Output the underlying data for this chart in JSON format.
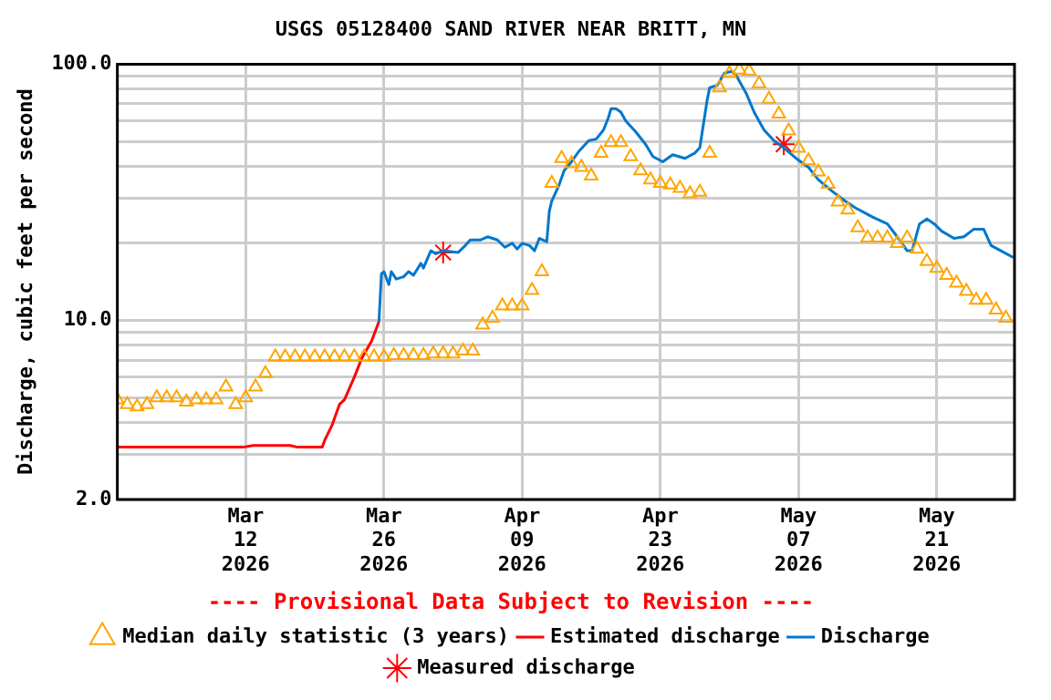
{
  "chart_data": {
    "type": "line",
    "title": "USGS 05128400 SAND RIVER NEAR BRITT, MN",
    "ylabel": "Discharge, cubic feet per second",
    "annotations": [
      "---- Provisional Data Subject to Revision ----"
    ],
    "log": true,
    "grid": true,
    "legend": "bottom",
    "xlim": [
      "2026-02-27",
      "2026-05-28T21:00"
    ],
    "xticks": [
      {
        "value": "2026-03-12",
        "label": "Mar 12 2026"
      },
      {
        "value": "2026-03-26",
        "label": "Mar 26 2026"
      },
      {
        "value": "2026-04-09",
        "label": "Apr 09 2026"
      },
      {
        "value": "2026-04-23",
        "label": "Apr 23 2026"
      },
      {
        "value": "2026-05-07",
        "label": "May 07 2026"
      },
      {
        "value": "2026-05-21",
        "label": "May 21 2026"
      }
    ],
    "ylim": [
      2,
      100
    ],
    "yticks": [
      {
        "value": 2,
        "label": "2.0"
      },
      {
        "value": 3,
        "label": null
      },
      {
        "value": 4,
        "label": null
      },
      {
        "value": 5,
        "label": null
      },
      {
        "value": 6,
        "label": null
      },
      {
        "value": 7,
        "label": null
      },
      {
        "value": 8,
        "label": null
      },
      {
        "value": 9,
        "label": null
      },
      {
        "value": 10,
        "label": "10.0"
      },
      {
        "value": 20,
        "label": null
      },
      {
        "value": 30,
        "label": null
      },
      {
        "value": 40,
        "label": null
      },
      {
        "value": 50,
        "label": null
      },
      {
        "value": 60,
        "label": null
      },
      {
        "value": 70,
        "label": null
      },
      {
        "value": 80,
        "label": null
      },
      {
        "value": 90,
        "label": null
      },
      {
        "value": 100,
        "label": "100.0"
      }
    ],
    "series": [
      {
        "name": "Median daily statistic (3 years)",
        "type": "scatter",
        "marker": "triangle",
        "color": "#ffa500",
        "x": [
          "2026-02-27",
          "2026-02-28",
          "2026-03-01",
          "2026-03-02",
          "2026-03-03",
          "2026-03-04",
          "2026-03-05",
          "2026-03-06",
          "2026-03-07",
          "2026-03-08",
          "2026-03-09",
          "2026-03-10",
          "2026-03-11",
          "2026-03-12",
          "2026-03-13",
          "2026-03-14",
          "2026-03-15",
          "2026-03-16",
          "2026-03-17",
          "2026-03-18",
          "2026-03-19",
          "2026-03-20",
          "2026-03-21",
          "2026-03-22",
          "2026-03-23",
          "2026-03-24",
          "2026-03-25",
          "2026-03-26",
          "2026-03-27",
          "2026-03-28",
          "2026-03-29",
          "2026-03-30",
          "2026-03-31",
          "2026-04-01",
          "2026-04-02",
          "2026-04-03",
          "2026-04-04",
          "2026-04-05",
          "2026-04-06",
          "2026-04-07",
          "2026-04-08",
          "2026-04-09",
          "2026-04-10",
          "2026-04-11",
          "2026-04-12",
          "2026-04-13",
          "2026-04-14",
          "2026-04-15",
          "2026-04-16",
          "2026-04-17",
          "2026-04-18",
          "2026-04-19",
          "2026-04-20",
          "2026-04-21",
          "2026-04-22",
          "2026-04-23",
          "2026-04-24",
          "2026-04-25",
          "2026-04-26",
          "2026-04-27",
          "2026-04-28",
          "2026-04-29",
          "2026-04-30",
          "2026-05-01",
          "2026-05-02",
          "2026-05-03",
          "2026-05-04",
          "2026-05-05",
          "2026-05-06",
          "2026-05-07",
          "2026-05-08",
          "2026-05-09",
          "2026-05-10",
          "2026-05-11",
          "2026-05-12",
          "2026-05-13",
          "2026-05-14",
          "2026-05-15",
          "2026-05-16",
          "2026-05-17",
          "2026-05-18",
          "2026-05-19",
          "2026-05-20",
          "2026-05-21",
          "2026-05-22",
          "2026-05-23",
          "2026-05-24",
          "2026-05-25",
          "2026-05-26",
          "2026-05-27",
          "2026-05-28"
        ],
        "values": [
          4.9,
          4.7,
          4.6,
          4.7,
          5.0,
          5.0,
          5.0,
          4.8,
          4.9,
          4.9,
          4.9,
          5.5,
          4.7,
          5.0,
          5.5,
          6.2,
          7.2,
          7.2,
          7.2,
          7.2,
          7.2,
          7.2,
          7.2,
          7.2,
          7.2,
          7.2,
          7.2,
          7.2,
          7.3,
          7.3,
          7.3,
          7.3,
          7.4,
          7.4,
          7.4,
          7.6,
          7.6,
          9.6,
          10.2,
          11.4,
          11.4,
          11.4,
          13.1,
          15.5,
          34.3,
          42.9,
          40.9,
          39.6,
          36.6,
          45,
          49.5,
          49.5,
          43.6,
          38.4,
          35.4,
          34.3,
          33.8,
          32.8,
          31.2,
          31.7,
          45,
          81,
          92,
          95,
          94,
          84,
          73,
          64,
          55,
          47,
          42,
          38,
          34,
          29,
          27,
          23,
          21,
          21,
          21,
          20,
          21,
          19,
          17,
          16,
          15,
          14,
          13,
          12,
          12,
          11,
          10.2
        ]
      },
      {
        "name": "Estimated discharge",
        "type": "line",
        "color": "#ff0000",
        "x": [
          "2026-02-27",
          "2026-03-11T18:00",
          "2026-03-12T18:00",
          "2026-03-16T12:00",
          "2026-03-17T06:00",
          "2026-03-19T18:00",
          "2026-03-20",
          "2026-03-20T18:00",
          "2026-03-21T12:00",
          "2026-03-22",
          "2026-03-23",
          "2026-03-23T18:00",
          "2026-03-24T18:00",
          "2026-03-25T12:00"
        ],
        "values": [
          3.2,
          3.2,
          3.25,
          3.25,
          3.2,
          3.2,
          3.4,
          3.9,
          4.7,
          4.9,
          6.0,
          7.1,
          8.3,
          9.9
        ]
      },
      {
        "name": "Discharge",
        "type": "line",
        "color": "#0077cc",
        "x": [
          "2026-03-25T12:00",
          "2026-03-25T18:00",
          "2026-03-26",
          "2026-03-26T12:00",
          "2026-03-26T18:00",
          "2026-03-27T06:00",
          "2026-03-28",
          "2026-03-28T12:00",
          "2026-03-29",
          "2026-03-29T18:00",
          "2026-03-30",
          "2026-03-30T18:00",
          "2026-03-31T06:00",
          "2026-04-01",
          "2026-04-02T12:00",
          "2026-04-03T06:00",
          "2026-04-03T18:00",
          "2026-04-04T18:00",
          "2026-04-05T12:00",
          "2026-04-06T12:00",
          "2026-04-07T06:00",
          "2026-04-08",
          "2026-04-08T12:00",
          "2026-04-09",
          "2026-04-09T18:00",
          "2026-04-10T06:00",
          "2026-04-10T18:00",
          "2026-04-11T12:00",
          "2026-04-11T18:00",
          "2026-04-12",
          "2026-04-12T18:00",
          "2026-04-13T06:00",
          "2026-04-14",
          "2026-04-14T18:00",
          "2026-04-15T18:00",
          "2026-04-16T12:00",
          "2026-04-17T06:00",
          "2026-04-17T18:00",
          "2026-04-18",
          "2026-04-18T12:00",
          "2026-04-19",
          "2026-04-19T12:00",
          "2026-04-20T12:00",
          "2026-04-21T12:00",
          "2026-04-22T06:00",
          "2026-04-23T06:00",
          "2026-04-24T06:00",
          "2026-04-25T12:00",
          "2026-04-26T12:00",
          "2026-04-27",
          "2026-04-27T18:00",
          "2026-04-28",
          "2026-04-28T18:00",
          "2026-04-29T12:00",
          "2026-04-30T06:00",
          "2026-04-30T18:00",
          "2026-05-01T18:00",
          "2026-05-02T12:00",
          "2026-05-03T12:00",
          "2026-05-04T12:00",
          "2026-05-05T12:00",
          "2026-05-06T18:00",
          "2026-05-08",
          "2026-05-09",
          "2026-05-10T12:00",
          "2026-05-11T18:00",
          "2026-05-12T18:00",
          "2026-05-14T12:00",
          "2026-05-16",
          "2026-05-17",
          "2026-05-18",
          "2026-05-18T12:00",
          "2026-05-19T06:00",
          "2026-05-20",
          "2026-05-20T18:00",
          "2026-05-21T12:00",
          "2026-05-22T18:00",
          "2026-05-23T18:00",
          "2026-05-24T18:00",
          "2026-05-25T18:00",
          "2026-05-26T12:00",
          "2026-05-27T12:00",
          "2026-05-28T18:00"
        ],
        "values": [
          9.9,
          15.2,
          15.5,
          13.8,
          15.5,
          14.5,
          14.8,
          15.5,
          15,
          16.7,
          16,
          18.7,
          18.2,
          18.7,
          18.4,
          19.6,
          20.6,
          20.6,
          21.2,
          20.6,
          19.3,
          20,
          19.0,
          20,
          19.6,
          18.7,
          20.9,
          20.3,
          26.6,
          29.2,
          33.8,
          38.4,
          41.6,
          45.7,
          50.3,
          51,
          55.4,
          62,
          67,
          67,
          65,
          60,
          54.5,
          48.7,
          43.6,
          41.6,
          44.3,
          42.9,
          45,
          47.2,
          72.7,
          81,
          82.6,
          92.3,
          93.8,
          89.4,
          76.2,
          65,
          55.4,
          50.3,
          47.2,
          42.9,
          39.6,
          35.4,
          31.7,
          29.2,
          27.5,
          25.3,
          23.8,
          21.2,
          18.7,
          18.7,
          23.8,
          24.9,
          23.8,
          22.3,
          20.9,
          21.2,
          22.7,
          22.7,
          19.6,
          18.7,
          17.6
        ]
      },
      {
        "name": "Measured discharge",
        "type": "scatter",
        "marker": "cross",
        "color": "#ff0000",
        "x": [
          "2026-04-01",
          "2026-05-05T12:00"
        ],
        "values": [
          18.4,
          48.7
        ]
      }
    ]
  }
}
